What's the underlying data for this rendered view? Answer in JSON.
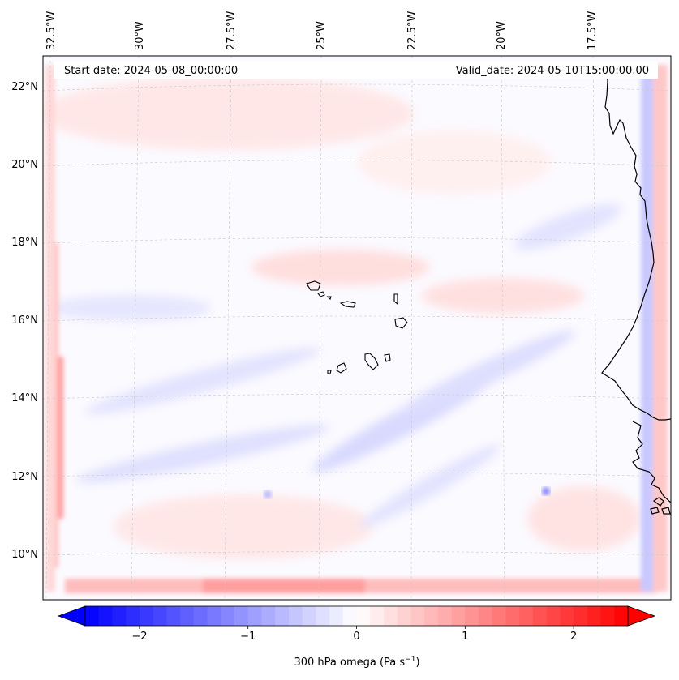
{
  "map": {
    "start_date": "Start date: 2024-05-08_00:00:00",
    "valid_date": "Valid_date: 2024-05-10T15:00:00.00",
    "lon_labels": [
      "32.5°W",
      "30°W",
      "27.5°W",
      "25°W",
      "22.5°W",
      "20°W",
      "17.5°W"
    ],
    "lat_labels": [
      "22°N",
      "20°N",
      "18°N",
      "16°N",
      "14°N",
      "12°N",
      "10°N"
    ],
    "variable": "300 hPa omega"
  },
  "colorbar": {
    "label_main": "300 hPa omega (Pa s",
    "label_exp": "−1",
    "label_close": ")",
    "ticks": [
      {
        "value": -2,
        "text": "−2"
      },
      {
        "value": -1,
        "text": "−1"
      },
      {
        "value": 0,
        "text": "0"
      },
      {
        "value": 1,
        "text": "1"
      },
      {
        "value": 2,
        "text": "2"
      }
    ],
    "range": [
      -2.5,
      2.5
    ],
    "colors": {
      "low": "#0000ff",
      "mid": "#ffffff",
      "high": "#ff0000"
    }
  },
  "colors": {
    "coast": "#000000",
    "grid": "#bbbbbb",
    "field_pos": "#ffd6d6",
    "field_neg": "#dcdcff"
  }
}
